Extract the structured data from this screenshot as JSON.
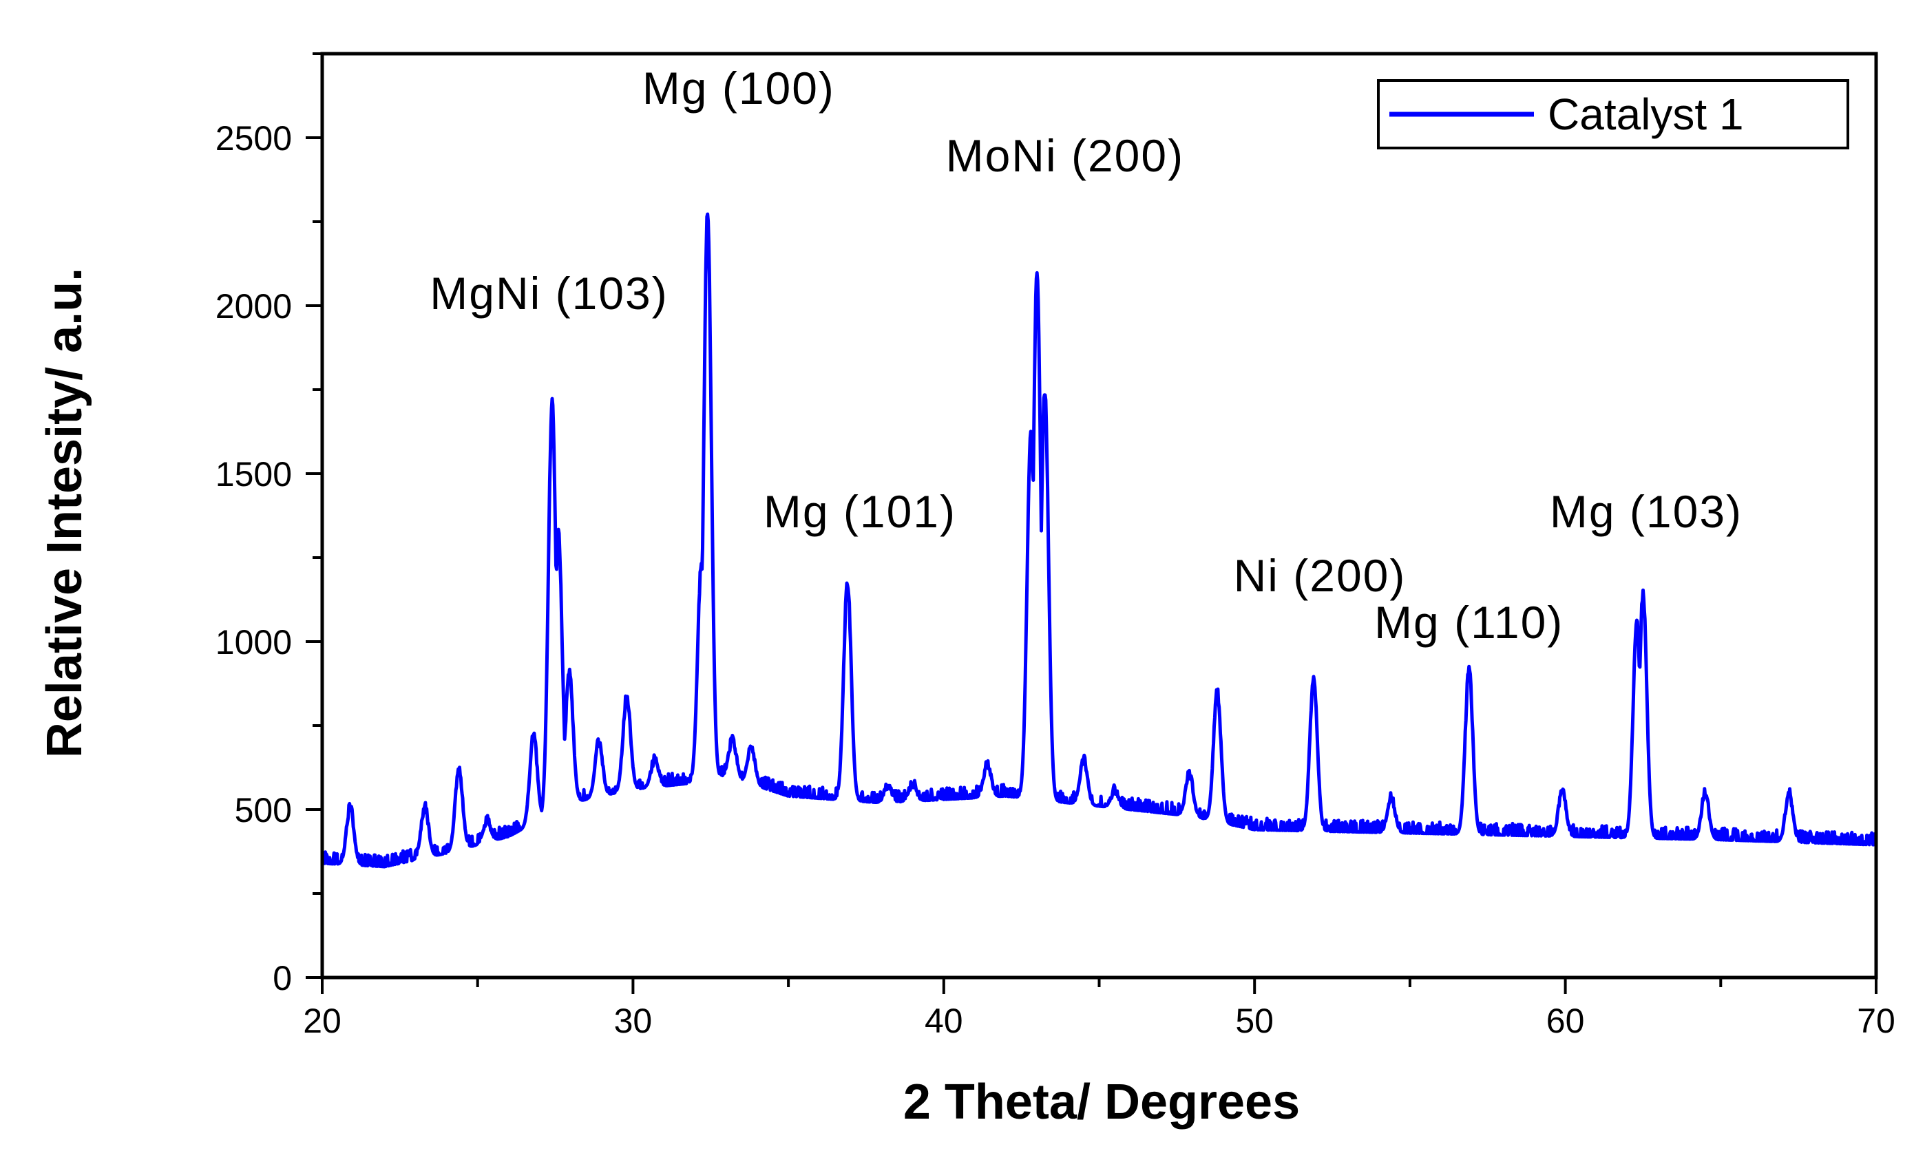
{
  "chart_data": {
    "type": "line",
    "title": "",
    "xlabel": "2 Theta/ Degrees",
    "ylabel": "Relative Intesity/ a.u.",
    "xlim": [
      20,
      70
    ],
    "ylim": [
      0,
      2750
    ],
    "xticks": [
      20,
      30,
      40,
      50,
      60,
      70
    ],
    "yticks": [
      0,
      500,
      1000,
      1500,
      2000,
      2500
    ],
    "grid": false,
    "legend_position": "top-right",
    "series": [
      {
        "name": "Catalyst 1",
        "color": "#0000ff",
        "baseline": [
          [
            20,
            340
          ],
          [
            22,
            330
          ],
          [
            24,
            370
          ],
          [
            26,
            420
          ],
          [
            27,
            470
          ],
          [
            28,
            520
          ],
          [
            30,
            560
          ],
          [
            32,
            580
          ],
          [
            33,
            600
          ],
          [
            35,
            540
          ],
          [
            38,
            520
          ],
          [
            42,
            540
          ],
          [
            45,
            510
          ],
          [
            48,
            480
          ],
          [
            50,
            440
          ],
          [
            55,
            430
          ],
          [
            60,
            420
          ],
          [
            65,
            410
          ],
          [
            70,
            395
          ]
        ],
        "peaks": [
          {
            "x": 20.9,
            "y": 510
          },
          {
            "x": 23.3,
            "y": 510
          },
          {
            "x": 24.4,
            "y": 620
          },
          {
            "x": 25.3,
            "y": 470
          },
          {
            "x": 26.8,
            "y": 720
          },
          {
            "x": 27.4,
            "y": 1710
          },
          {
            "x": 27.6,
            "y": 1320
          },
          {
            "x": 27.95,
            "y": 910
          },
          {
            "x": 28.9,
            "y": 700
          },
          {
            "x": 29.8,
            "y": 840
          },
          {
            "x": 30.7,
            "y": 650
          },
          {
            "x": 32.2,
            "y": 1230
          },
          {
            "x": 32.4,
            "y": 2280
          },
          {
            "x": 33.2,
            "y": 710
          },
          {
            "x": 33.8,
            "y": 690
          },
          {
            "x": 36.9,
            "y": 1180
          },
          {
            "x": 38.2,
            "y": 570
          },
          {
            "x": 39.0,
            "y": 580
          },
          {
            "x": 41.4,
            "y": 640
          },
          {
            "x": 42.8,
            "y": 1620
          },
          {
            "x": 43.0,
            "y": 2100
          },
          {
            "x": 43.25,
            "y": 1750
          },
          {
            "x": 44.5,
            "y": 650
          },
          {
            "x": 45.5,
            "y": 560
          },
          {
            "x": 47.9,
            "y": 610
          },
          {
            "x": 48.8,
            "y": 850
          },
          {
            "x": 51.9,
            "y": 890
          },
          {
            "x": 54.4,
            "y": 540
          },
          {
            "x": 56.9,
            "y": 920
          },
          {
            "x": 59.9,
            "y": 560
          },
          {
            "x": 62.3,
            "y": 1060
          },
          {
            "x": 62.5,
            "y": 1140
          },
          {
            "x": 64.5,
            "y": 550
          },
          {
            "x": 67.2,
            "y": 550
          }
        ]
      }
    ],
    "annotations": [
      {
        "text": "Mg (100)",
        "x": 33.4,
        "y": 2600
      },
      {
        "text": "MoNi (200)",
        "x": 43.9,
        "y": 2400
      },
      {
        "text": "MgNi (103)",
        "x": 27.3,
        "y": 1990
      },
      {
        "text": "Mg (101)",
        "x": 37.3,
        "y": 1340
      },
      {
        "text": "Ni (200)",
        "x": 52.1,
        "y": 1150
      },
      {
        "text": "Mg (110)",
        "x": 56.9,
        "y": 1010
      },
      {
        "text": "Mg (103)",
        "x": 62.6,
        "y": 1340
      }
    ]
  }
}
